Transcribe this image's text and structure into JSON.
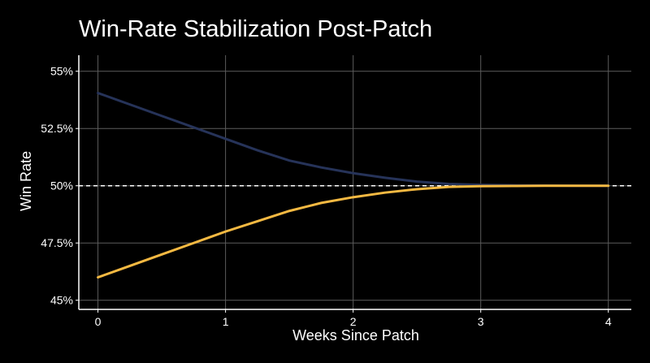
{
  "chart_data": {
    "type": "line",
    "title": "Win-Rate Stabilization Post-Patch",
    "xlabel": "Weeks Since Patch",
    "ylabel": "Win Rate",
    "xlim": [
      -0.15,
      4.18
    ],
    "ylim": [
      44.6,
      55.7
    ],
    "x_ticks": [
      0,
      1,
      2,
      3,
      4
    ],
    "x_tick_labels": [
      "0",
      "1",
      "2",
      "3",
      "4"
    ],
    "y_ticks": [
      45,
      47.5,
      50,
      52.5,
      55
    ],
    "y_tick_labels": [
      "45%",
      "47.5%",
      "50%",
      "52.5%",
      "55%"
    ],
    "grid": true,
    "reference_line": {
      "y": 50,
      "style": "dashed"
    },
    "series": [
      {
        "color": "#263359",
        "x": [
          0,
          0.25,
          0.5,
          0.75,
          1,
          1.25,
          1.5,
          1.75,
          2,
          2.25,
          2.5,
          2.75,
          3,
          3.25,
          3.5,
          3.75,
          4
        ],
        "y": [
          54.05,
          53.55,
          53.05,
          52.55,
          52.05,
          51.55,
          51.1,
          50.8,
          50.55,
          50.35,
          50.18,
          50.08,
          50.04,
          50.02,
          50.01,
          50.0,
          50.0
        ]
      },
      {
        "color": "#f5b942",
        "x": [
          0,
          0.25,
          0.5,
          0.75,
          1,
          1.25,
          1.5,
          1.75,
          2,
          2.25,
          2.5,
          2.75,
          3,
          3.25,
          3.5,
          3.75,
          4
        ],
        "y": [
          46.0,
          46.5,
          47.0,
          47.5,
          48.0,
          48.45,
          48.9,
          49.25,
          49.5,
          49.7,
          49.85,
          49.95,
          49.98,
          49.99,
          50.0,
          50.0,
          50.0
        ]
      }
    ]
  }
}
